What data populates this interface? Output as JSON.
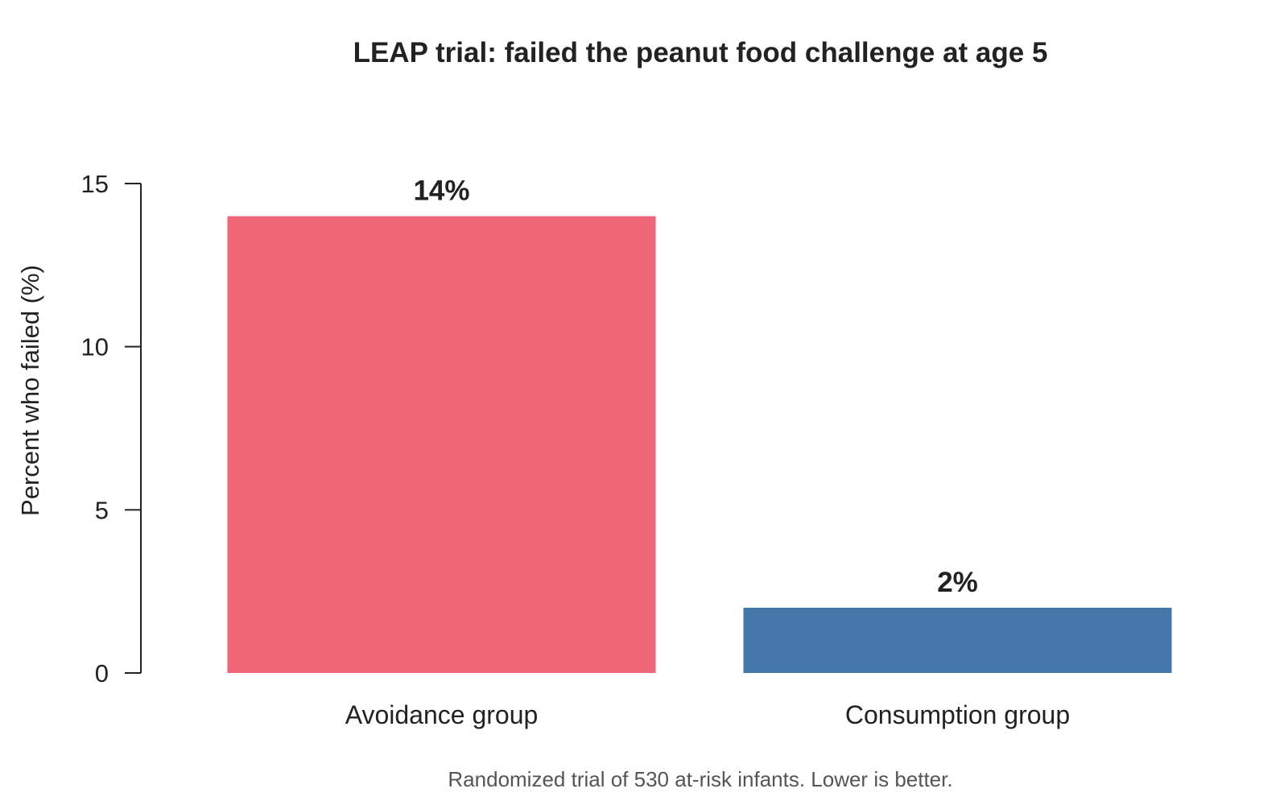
{
  "chart_data": {
    "type": "bar",
    "title": "LEAP trial: failed the peanut food challenge at age 5",
    "xlabel": "",
    "ylabel": "Percent who failed (%)",
    "ylim": [
      0,
      15
    ],
    "yticks": [
      0,
      5,
      10,
      15
    ],
    "ytick_labels": [
      "0",
      "5",
      "10",
      "15"
    ],
    "categories": [
      "Avoidance group",
      "Consumption group"
    ],
    "values": [
      14,
      2
    ],
    "data_labels": [
      "14%",
      "2%"
    ],
    "colors": [
      "#EF6678",
      "#4477AA"
    ],
    "grid": false,
    "legend": "none",
    "footnote": "Randomized trial of 530 at-risk infants. Lower is better."
  }
}
